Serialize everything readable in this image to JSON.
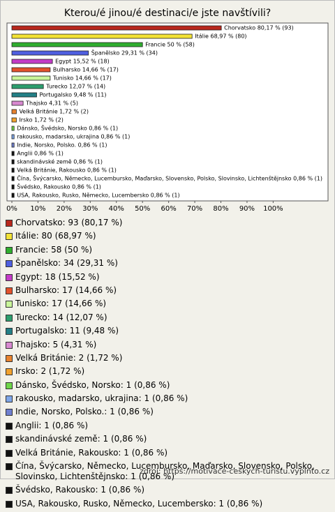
{
  "chart_data": {
    "type": "barh",
    "title": "Kterou/é jinou/é destinaci/e jste navštívili?",
    "values": [
      80.17,
      68.97,
      50,
      29.31,
      15.52,
      14.66,
      14.66,
      12.07,
      9.48,
      4.31,
      1.72,
      1.72,
      0.86,
      0.86,
      0.86,
      0.86,
      0.86,
      0.86,
      0.86,
      0.86,
      0.86
    ],
    "value_labels": [
      "Chorvatsko 80,17 % (93)",
      "Itálie 68,97 % (80)",
      "Francie 50 % (58)",
      "Španělsko 29,31 % (34)",
      "Egypt 15,52 % (18)",
      "Bulharsko 14,66 % (17)",
      "Tunisko 14,66 % (17)",
      "Turecko 12,07 % (14)",
      "Portugalsko 9,48 % (11)",
      "Thajsko 4,31 % (5)",
      "Velká Británie 1,72 % (2)",
      "Irsko 1,72 % (2)",
      "Dánsko, Švédsko, Norsko 0,86 % (1)",
      "rakousko, madarsko, ukrajina 0,86 % (1)",
      "Indie, Norsko, Polsko. 0,86 % (1)",
      "Anglii 0,86 % (1)",
      "skandinávské země 0,86 % (1)",
      "Velká Británie, Rakousko 0,86 % (1)",
      "Čína, Švýcarsko, Německo, Lucembursko, Maďarsko, Slovensko, Polsko, Slovinsko, Lichtenštějnsko 0,86 % (1)",
      "Švédsko, Rakousko 0,86 % (1)",
      "USA, Rakousko, Rusko, Německo, Lucembersko 0,86 % (1)"
    ],
    "legend_labels": [
      "Chorvatsko: 93 (80,17 %)",
      "Itálie: 80 (68,97 %)",
      "Francie: 58 (50 %)",
      "Španělsko: 34 (29,31 %)",
      "Egypt: 18 (15,52 %)",
      "Bulharsko: 17 (14,66 %)",
      "Tunisko: 17 (14,66 %)",
      "Turecko: 14 (12,07 %)",
      "Portugalsko: 11 (9,48 %)",
      "Thajsko: 5 (4,31 %)",
      "Velká Británie: 2 (1,72 %)",
      "Irsko: 2 (1,72 %)",
      "Dánsko, Švédsko, Norsko: 1 (0,86 %)",
      "rakousko, madarsko, ukrajina: 1 (0,86 %)",
      "Indie, Norsko, Polsko.: 1 (0,86 %)",
      "Anglii: 1 (0,86 %)",
      "skandinávské země: 1 (0,86 %)",
      "Velká Británie, Rakousko: 1 (0,86 %)",
      "Čína, Švýcarsko, Německo, Lucembursko, Maďarsko, Slovensko, Polsko, Slovinsko, Lichtenštějnsko: 1 (0,86 %)",
      "Švédsko, Rakousko: 1 (0,86 %)",
      "USA, Rakousko, Rusko, Německo, Lucembersko: 1 (0,86 %)"
    ],
    "colors": [
      "#b8271c",
      "#f2e236",
      "#2fae2f",
      "#4f5fe0",
      "#c43cc8",
      "#e2512c",
      "#c9f59a",
      "#2d9e6e",
      "#237f86",
      "#d889d0",
      "#e8822e",
      "#f2a22e",
      "#6fd64a",
      "#7fa7e8",
      "#6f7fd0",
      "#111111",
      "#111111",
      "#111111",
      "#111111",
      "#111111",
      "#111111"
    ],
    "xlim": [
      0,
      121
    ],
    "xticks": [
      {
        "value": 0,
        "label": "0%"
      },
      {
        "value": 10,
        "label": "10%"
      },
      {
        "value": 20,
        "label": "20%"
      },
      {
        "value": 30,
        "label": "30%"
      },
      {
        "value": 40,
        "label": "40%"
      },
      {
        "value": 50,
        "label": "50%"
      },
      {
        "value": 60,
        "label": "60%"
      },
      {
        "value": 70,
        "label": "70%"
      },
      {
        "value": 80,
        "label": "80%"
      },
      {
        "value": 90,
        "label": "90%"
      },
      {
        "value": 100,
        "label": "100%"
      }
    ],
    "source": "zdroj: https://motivace-ceskych-turistu.vyplnto.cz"
  }
}
